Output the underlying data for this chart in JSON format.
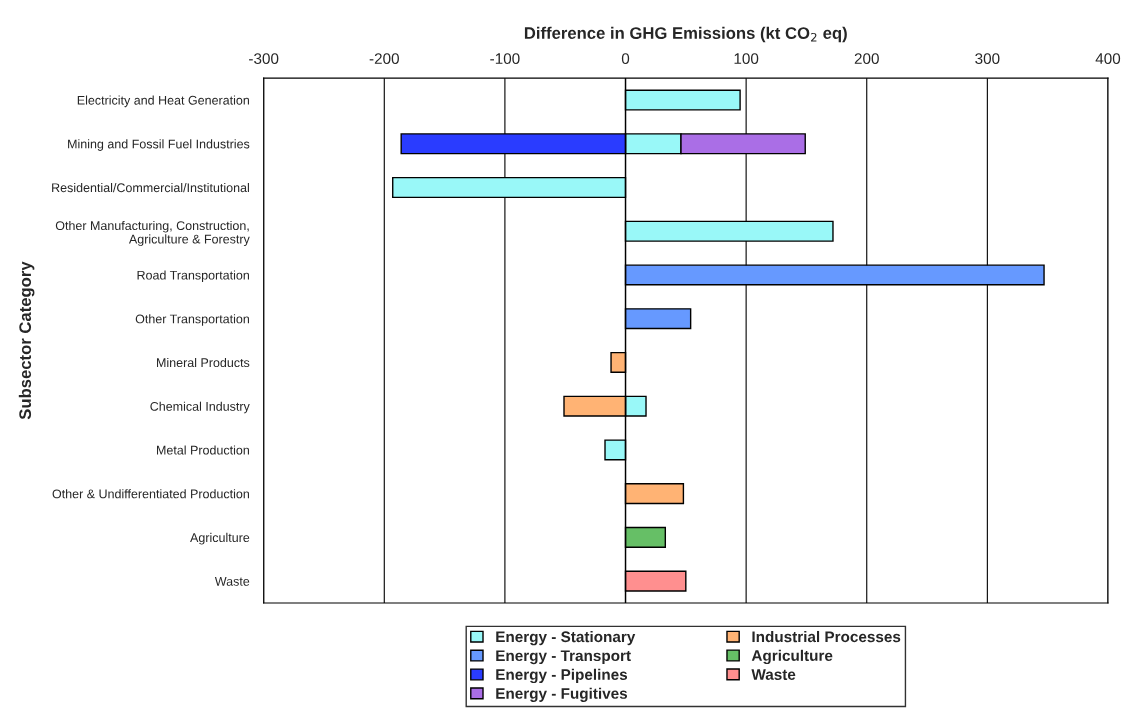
{
  "chart_data": {
    "type": "bar",
    "orientation": "horizontal",
    "stacked": true,
    "xlabel": "Difference in GHG Emissions (kt CO$_{2}$ eq)",
    "ylabel": "Subsector Category",
    "categories": [
      "Electricity and Heat Generation",
      "Mining and Fossil Fuel Industries",
      "Residential/Commercial/Institutional",
      "Other Manufacturing, Construction,\nAgriculture & Forestry",
      "Road Transportation",
      "Other Transportation",
      "Mineral Products",
      "Chemical Industry",
      "Metal Production",
      "Other & Undifferentiated Production",
      "Agriculture",
      "Waste"
    ],
    "series": [
      {
        "name": "Energy - Stationary",
        "color": "#99f8f8",
        "values": [
          95,
          46,
          -193,
          172,
          null,
          null,
          null,
          17,
          -17,
          null,
          null,
          null
        ]
      },
      {
        "name": "Energy - Transport",
        "color": "#6699ff",
        "values": [
          null,
          null,
          null,
          null,
          347,
          54,
          null,
          null,
          null,
          null,
          null,
          null
        ]
      },
      {
        "name": "Energy - Pipelines",
        "color": "#2a3cff",
        "values": [
          null,
          -186,
          null,
          null,
          null,
          null,
          null,
          null,
          null,
          null,
          null,
          null
        ]
      },
      {
        "name": "Energy - Fugitives",
        "color": "#aa6ee6",
        "values": [
          null,
          103,
          null,
          null,
          null,
          null,
          null,
          null,
          null,
          null,
          null,
          null
        ]
      },
      {
        "name": "Industrial Processes",
        "color": "#ffb374",
        "values": [
          null,
          null,
          null,
          null,
          null,
          null,
          -12,
          -51,
          null,
          48,
          null,
          null
        ]
      },
      {
        "name": "Agriculture",
        "color": "#66bf66",
        "values": [
          null,
          null,
          null,
          null,
          null,
          null,
          null,
          null,
          null,
          null,
          33,
          null
        ]
      },
      {
        "name": "Waste",
        "color": "#ff8f8f",
        "values": [
          null,
          null,
          null,
          null,
          null,
          null,
          null,
          null,
          null,
          null,
          null,
          50
        ]
      }
    ],
    "xlim": [
      -300,
      400
    ],
    "xticks": [
      -300,
      -200,
      -100,
      0,
      100,
      200,
      300,
      400
    ],
    "ref_lines": [
      {
        "axis": "x",
        "value": 0,
        "color": "#000000"
      }
    ],
    "grid": "x",
    "legend": "bottom"
  }
}
